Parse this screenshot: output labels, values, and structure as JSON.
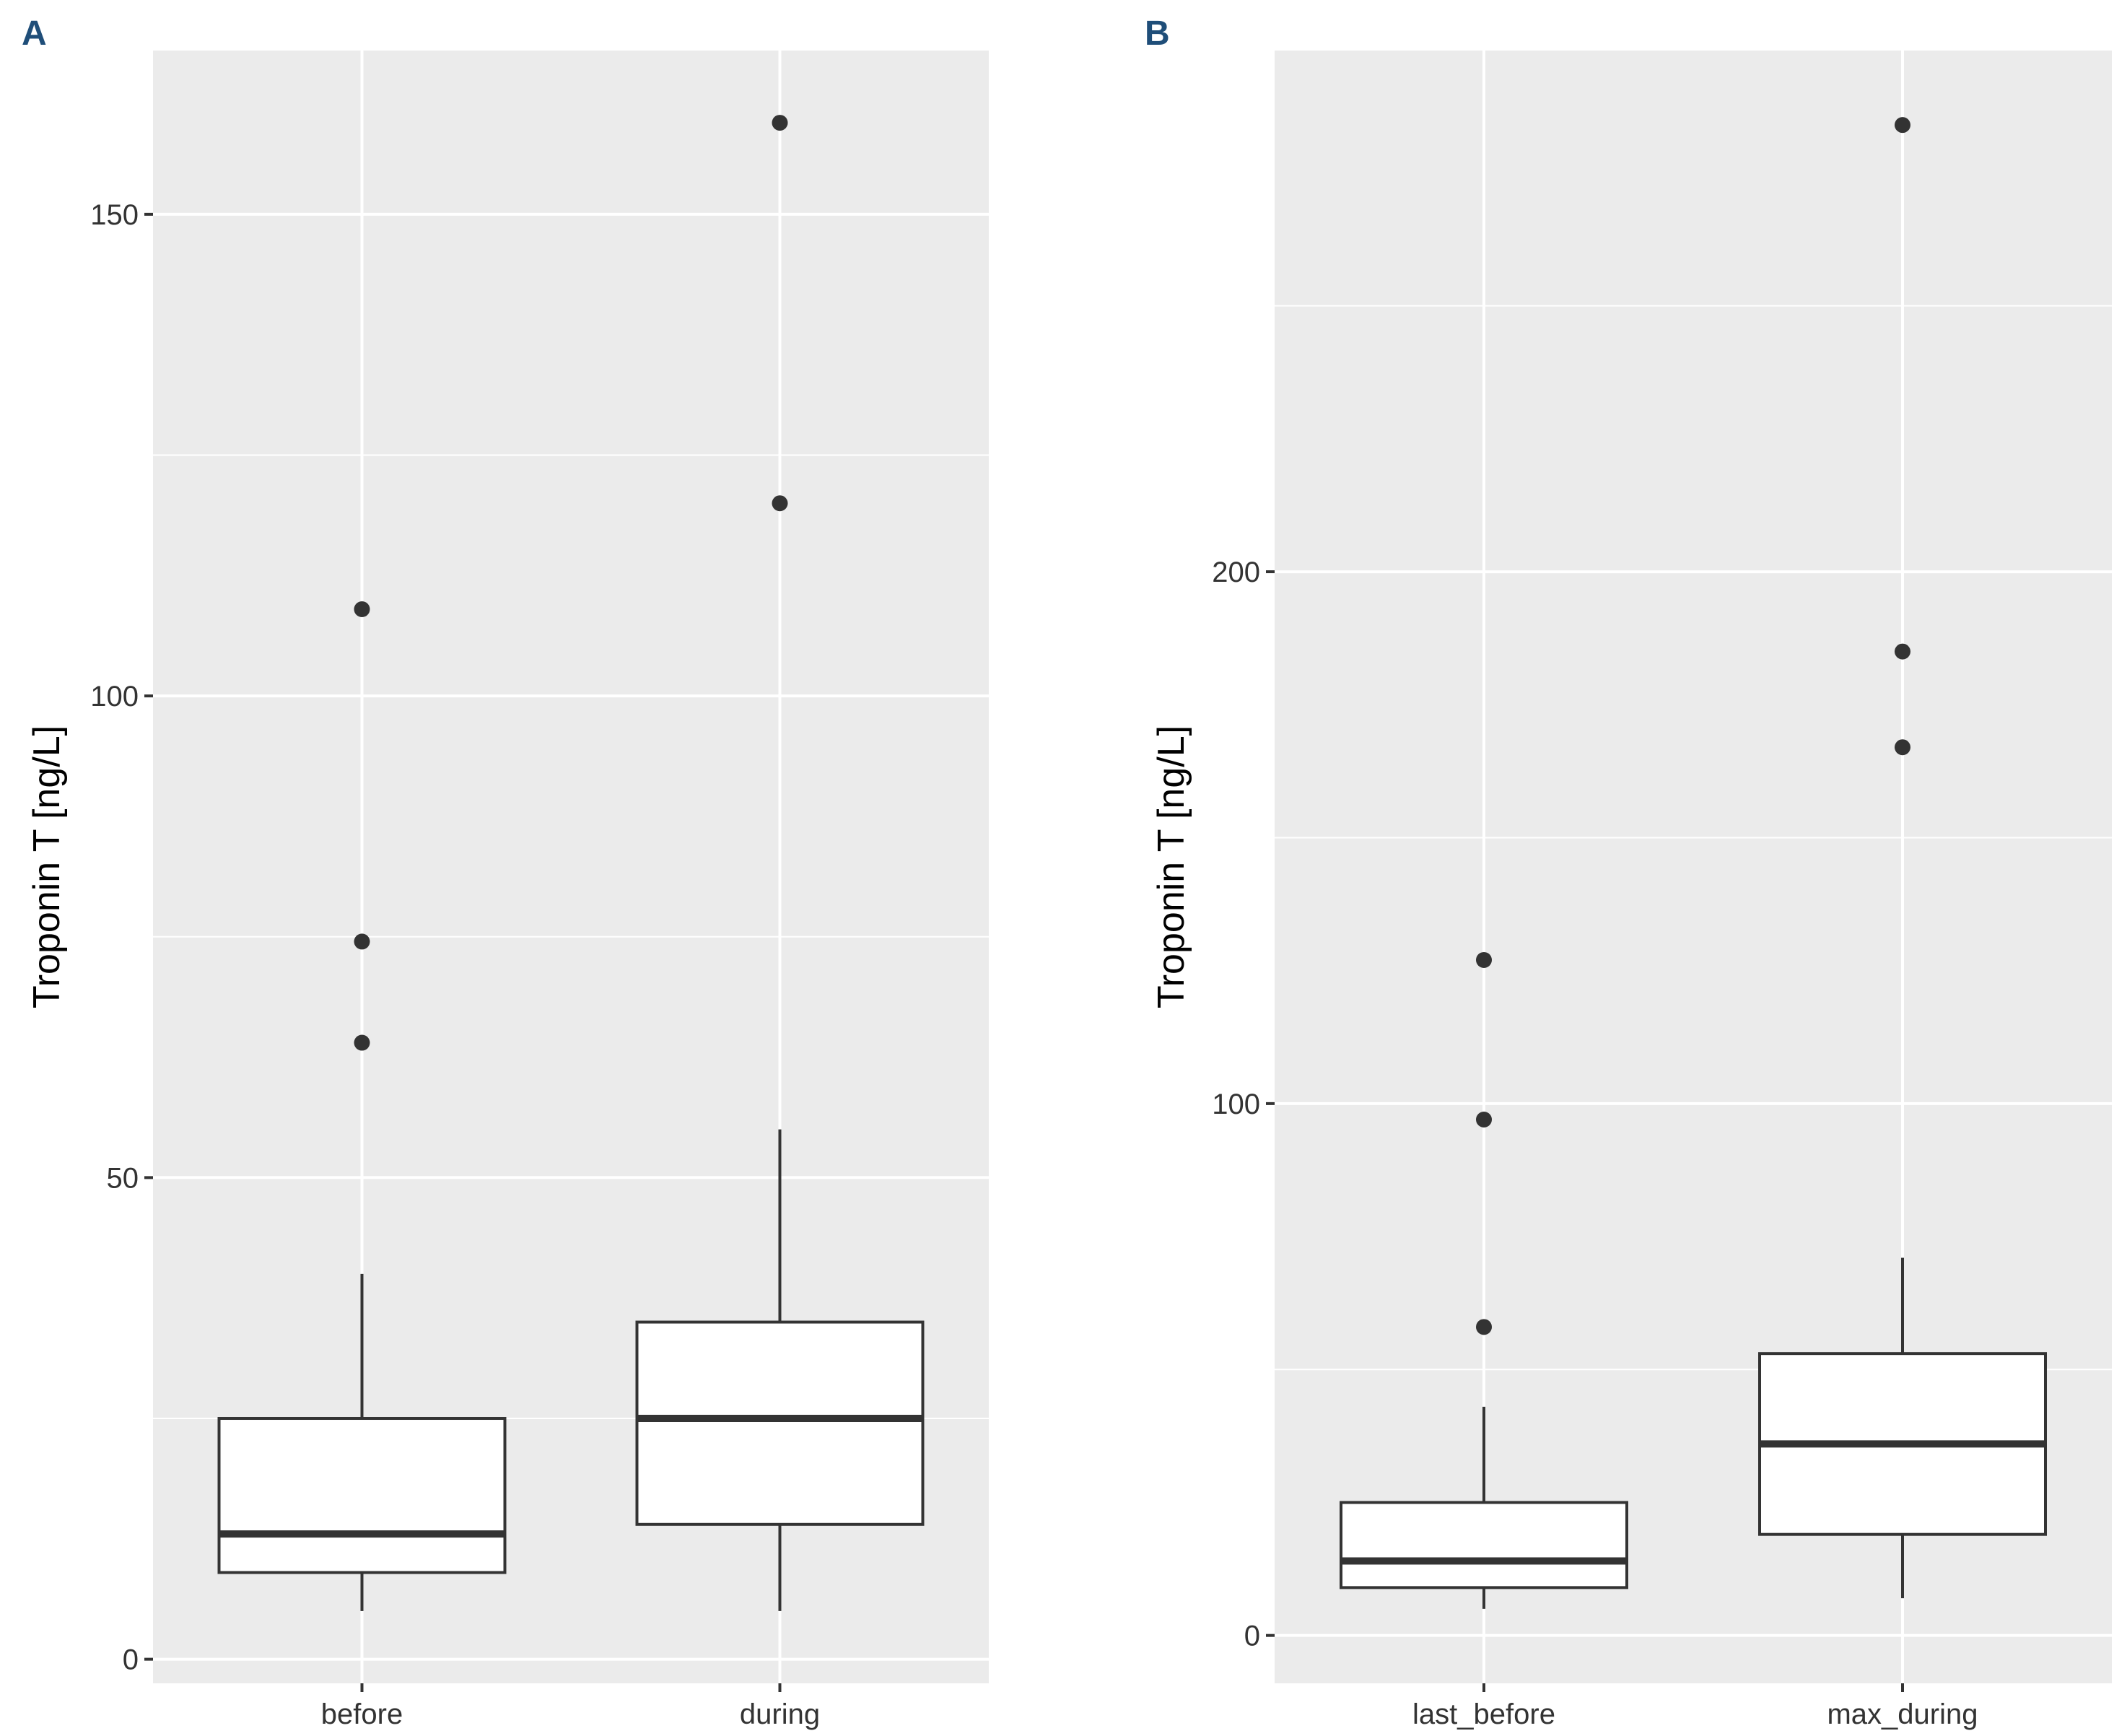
{
  "chart_data": [
    {
      "panel": "A",
      "type": "box",
      "ylabel": "Troponin T [ng/L]",
      "xlabel": "",
      "ylim": [
        -2.5,
        167
      ],
      "yticks": [
        0,
        50,
        100,
        150
      ],
      "ytick_labels": [
        "0",
        "50",
        "100",
        "150"
      ],
      "categories": [
        "before",
        "during"
      ],
      "boxes": [
        {
          "category": "before",
          "whisker_low": 5,
          "q1": 9,
          "median": 13,
          "q3": 25,
          "whisker_high": 40,
          "outliers": [
            64,
            74.5,
            109
          ]
        },
        {
          "category": "during",
          "whisker_low": 5,
          "q1": 14,
          "median": 25,
          "q3": 35,
          "whisker_high": 55,
          "outliers": [
            120,
            159.5
          ]
        }
      ]
    },
    {
      "panel": "B",
      "type": "box",
      "ylabel": "Troponin T [ng/L]",
      "xlabel": "",
      "ylim": [
        -9,
        298
      ],
      "yticks": [
        0,
        100,
        200
      ],
      "ytick_labels": [
        "0",
        "100",
        "200"
      ],
      "categories": [
        "last_before",
        "max_during"
      ],
      "boxes": [
        {
          "category": "last_before",
          "whisker_low": 5,
          "q1": 9,
          "median": 14,
          "q3": 25,
          "whisker_high": 43,
          "outliers": [
            58,
            97,
            127
          ]
        },
        {
          "category": "max_during",
          "whisker_low": 7,
          "q1": 19,
          "median": 36,
          "q3": 53,
          "whisker_high": 71,
          "outliers": [
            167,
            185,
            284
          ]
        }
      ]
    }
  ]
}
